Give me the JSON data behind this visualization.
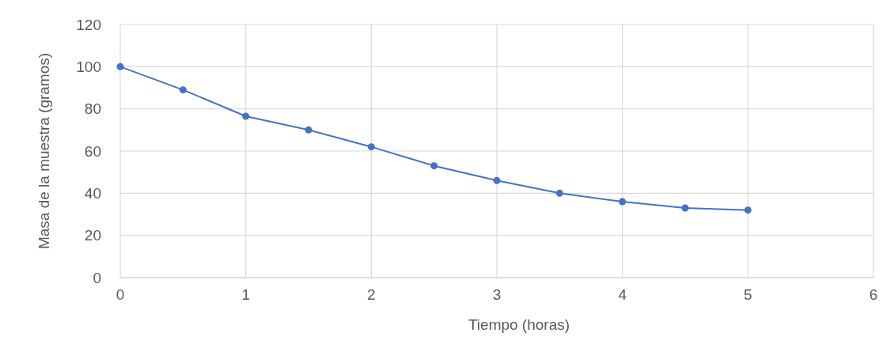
{
  "chart_data": {
    "type": "line",
    "xlabel": "Tiempo (horas)",
    "ylabel": "Masa de la muestra (gramos)",
    "x": [
      0,
      0.5,
      1,
      1.5,
      2,
      2.5,
      3,
      3.5,
      4,
      4.5,
      5
    ],
    "series": [
      {
        "color": "#4472c4",
        "values": [
          100,
          89,
          76.5,
          70,
          62,
          53,
          46,
          40,
          36,
          33,
          32
        ]
      }
    ],
    "xlim": [
      0,
      6
    ],
    "xticks": [
      0,
      1,
      2,
      3,
      4,
      5,
      6
    ],
    "ylim": [
      0,
      120
    ],
    "yticks": [
      0,
      20,
      40,
      60,
      80,
      100,
      120
    ],
    "grid": true,
    "marker": "circle",
    "line_style": "solid"
  }
}
